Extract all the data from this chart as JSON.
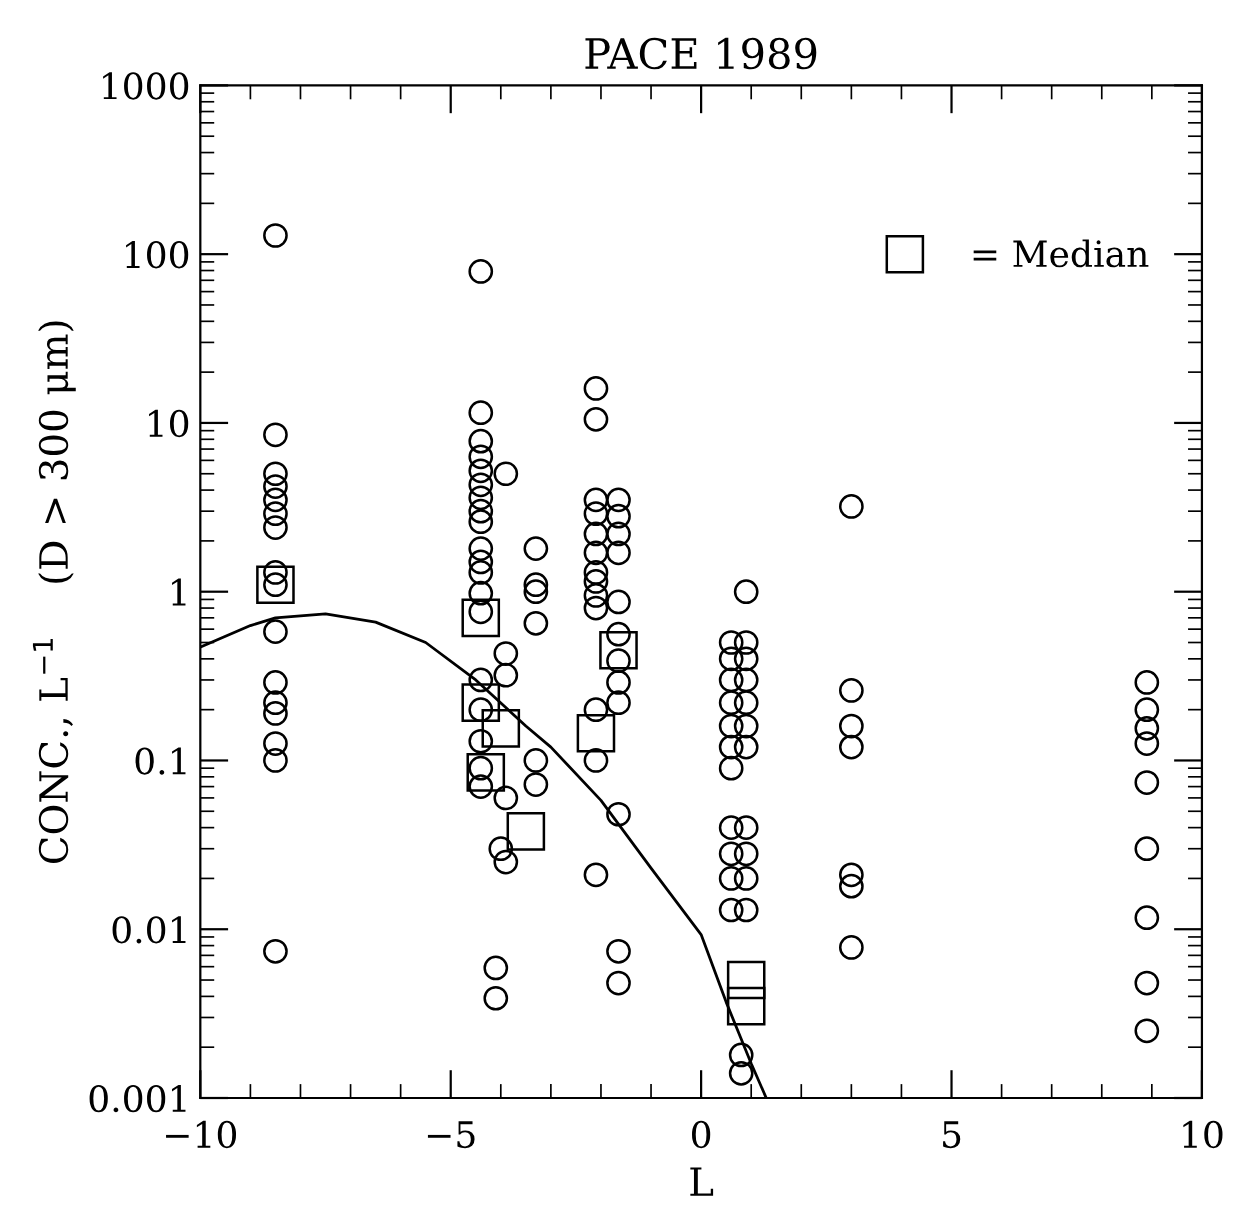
{
  "chart_data": {
    "type": "scatter",
    "title": "PACE 1989",
    "xlabel": "L",
    "ylabel": "CONC., L$^{−1}$    (D > 300 μm)",
    "log": "y",
    "xlim": [
      -10,
      10
    ],
    "xticks": [
      {
        "value": -10,
        "label": "−10"
      },
      {
        "value": -5,
        "label": "−5"
      },
      0,
      5,
      10
    ],
    "ylim": [
      0.001,
      1000
    ],
    "yticks": [
      0.001,
      0.01,
      0.1,
      1,
      10,
      100,
      1000
    ],
    "legend": "top right",
    "series": [
      {
        "marker": "circle",
        "color": "#000000",
        "x": [
          -8.5,
          -8.5,
          -8.5,
          -8.5,
          -8.5,
          -8.5,
          -8.5,
          -8.5,
          -8.5,
          -8.5,
          -8.5,
          -8.5,
          -8.5,
          -8.5,
          -8.5,
          -8.5,
          -4.4,
          -4.4,
          -4.4,
          -4.4,
          -4.4,
          -4.4,
          -4.4,
          -4.4,
          -4.4,
          -4.4,
          -4.4,
          -4.4,
          -4.4,
          -4.4,
          -4.4,
          -4.4,
          -4.4,
          -4.4,
          -4.4,
          -3.9,
          -3.9,
          -3.9,
          -3.9,
          -4.0,
          -3.9,
          -4.1,
          -4.1,
          -3.3,
          -3.3,
          -3.3,
          -3.3,
          -3.3,
          -3.3,
          -2.1,
          -2.1,
          -2.1,
          -2.1,
          -2.1,
          -2.1,
          -2.1,
          -2.1,
          -2.1,
          -2.1,
          -2.1,
          -2.1,
          -2.1,
          -1.65,
          -1.65,
          -1.65,
          -1.65,
          -1.65,
          -1.65,
          -1.65,
          -1.65,
          -1.65,
          -1.65,
          -1.65,
          -1.65,
          0.9,
          0.6,
          0.6,
          0.6,
          0.6,
          0.6,
          0.6,
          0.6,
          0.9,
          0.9,
          0.9,
          0.9,
          0.9,
          0.9,
          0.6,
          0.6,
          0.6,
          0.6,
          0.9,
          0.9,
          0.9,
          0.9,
          0.8,
          0.8,
          3.0,
          3.0,
          3.0,
          3.0,
          3.0,
          3.0,
          3.0,
          8.9,
          8.9,
          8.9,
          8.9,
          8.9,
          8.9,
          8.9,
          8.9,
          8.9
        ],
        "values": [
          129,
          8.5,
          5.0,
          4.2,
          3.5,
          2.9,
          2.4,
          1.3,
          1.1,
          0.58,
          0.29,
          0.22,
          0.19,
          0.126,
          0.1,
          0.0074,
          79,
          11.5,
          7.8,
          6.3,
          5.2,
          4.3,
          3.6,
          3.0,
          2.6,
          1.8,
          1.5,
          1.3,
          0.98,
          0.76,
          0.3,
          0.2,
          0.13,
          0.09,
          0.07,
          5.0,
          0.43,
          0.32,
          0.06,
          0.03,
          0.025,
          0.0059,
          0.0039,
          1.8,
          1.1,
          0.65,
          0.1,
          0.072,
          1.0,
          16,
          10.5,
          3.5,
          2.9,
          1.7,
          1.3,
          1.15,
          0.95,
          0.8,
          0.2,
          0.1,
          0.021,
          2.2,
          3.5,
          2.8,
          2.2,
          1.7,
          0.87,
          0.56,
          0.39,
          0.29,
          0.22,
          0.048,
          0.0074,
          0.0048,
          1.0,
          0.5,
          0.4,
          0.3,
          0.22,
          0.16,
          0.12,
          0.09,
          0.5,
          0.4,
          0.3,
          0.22,
          0.16,
          0.12,
          0.04,
          0.028,
          0.02,
          0.013,
          0.04,
          0.028,
          0.02,
          0.013,
          0.0018,
          0.0014,
          3.2,
          0.26,
          0.16,
          0.12,
          0.021,
          0.018,
          0.0078,
          0.29,
          0.2,
          0.155,
          0.126,
          0.074,
          0.03,
          0.0117,
          0.0048,
          0.0025
        ]
      },
      {
        "marker": "square",
        "color": "#000000",
        "name": "= Median",
        "x": [
          -8.5,
          -4.4,
          -4.4,
          -4.0,
          -4.3,
          -3.5,
          -2.1,
          -1.65,
          0.9,
          0.9
        ],
        "values": [
          1.1,
          0.7,
          0.22,
          0.155,
          0.085,
          0.038,
          0.145,
          0.45,
          0.005,
          0.0035
        ]
      },
      {
        "type": "line",
        "marker": "none",
        "line_style": "solid",
        "color": "#000000",
        "x": [
          -10,
          -9,
          -8.5,
          -7.5,
          -6.5,
          -5.5,
          -4.5,
          -3.5,
          -3,
          -2,
          -1,
          0,
          0.5,
          1,
          1.3
        ],
        "values": [
          0.47,
          0.63,
          0.7,
          0.74,
          0.66,
          0.5,
          0.3,
          0.16,
          0.12,
          0.058,
          0.023,
          0.0093,
          0.0037,
          0.0016,
          0.001
        ]
      }
    ]
  }
}
